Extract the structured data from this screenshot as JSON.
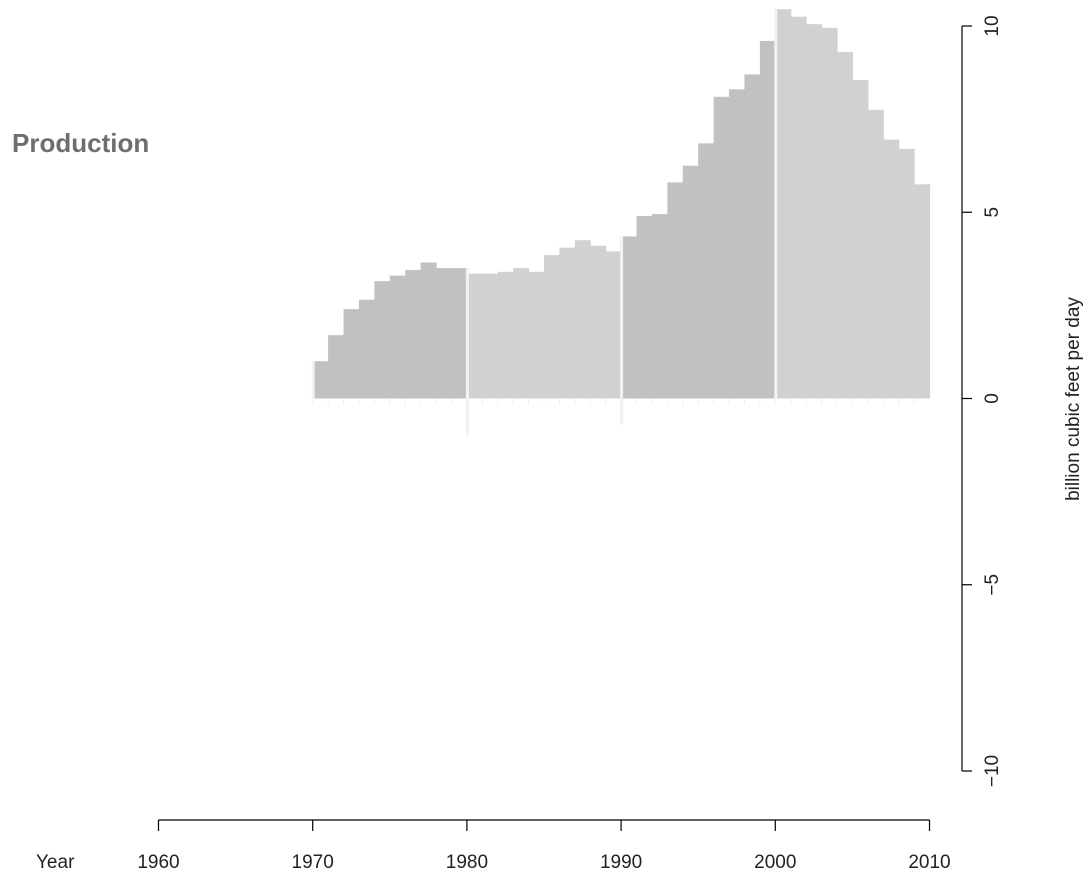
{
  "chart_data": {
    "type": "bar",
    "title": "Production",
    "xlabel": "Year",
    "ylabel": "billion cubic feet per day",
    "xlim": [
      1960,
      2010
    ],
    "ylim": [
      -10,
      10
    ],
    "xticks": [
      "1960",
      "1970",
      "1980",
      "1990",
      "2000",
      "2010"
    ],
    "yticks": [
      "−10",
      "−5",
      "0",
      "5",
      "10"
    ],
    "grid": false,
    "legend": "none",
    "x": [
      1970,
      1971,
      1972,
      1973,
      1974,
      1975,
      1976,
      1977,
      1978,
      1979,
      1980,
      1981,
      1982,
      1983,
      1984,
      1985,
      1986,
      1987,
      1988,
      1989,
      1990,
      1991,
      1992,
      1993,
      1994,
      1995,
      1996,
      1997,
      1998,
      1999,
      2000,
      2001,
      2002,
      2003,
      2004,
      2005,
      2006,
      2007,
      2008,
      2009
    ],
    "values": [
      1.0,
      1.7,
      2.4,
      2.65,
      3.15,
      3.3,
      3.45,
      3.65,
      3.5,
      3.5,
      3.35,
      3.35,
      3.4,
      3.5,
      3.4,
      3.85,
      4.05,
      4.25,
      4.1,
      3.95,
      4.35,
      4.9,
      4.95,
      5.8,
      6.25,
      6.85,
      8.1,
      8.3,
      8.7,
      9.6,
      10.45,
      10.25,
      10.05,
      9.95,
      9.3,
      8.55,
      7.75,
      6.95,
      6.7,
      5.75
    ],
    "colors": {
      "dark_decade": "#c1c1c1",
      "light_decade": "#d1d1d1",
      "divider": "#f2f2f2",
      "axis": "#000000",
      "title": "#6e6e6e"
    }
  }
}
